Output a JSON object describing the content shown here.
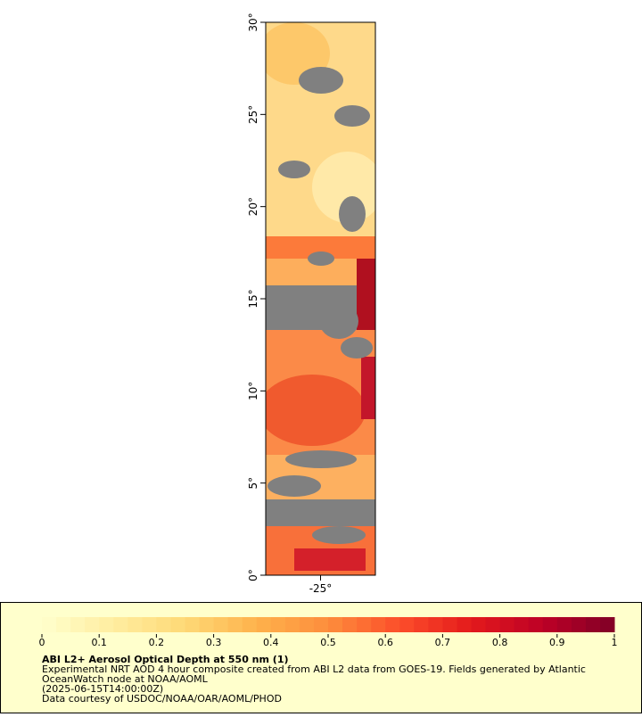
{
  "map": {
    "lat_range": [
      0,
      30
    ],
    "lat_ticks": [
      {
        "value": 0,
        "label": "0°"
      },
      {
        "value": 5,
        "label": "5°"
      },
      {
        "value": 10,
        "label": "10°"
      },
      {
        "value": 15,
        "label": "15°"
      },
      {
        "value": 20,
        "label": "20°"
      },
      {
        "value": 25,
        "label": "25°"
      },
      {
        "value": 30,
        "label": "30°"
      }
    ],
    "lon_range": [
      -28,
      -22
    ],
    "lon_ticks": [
      {
        "value": -25,
        "label": "-25°"
      }
    ]
  },
  "colorbar": {
    "range": [
      0,
      1
    ],
    "ticks": [
      0,
      0.1,
      0.2,
      0.3,
      0.4,
      0.5,
      0.6,
      0.7,
      0.8,
      0.9,
      1
    ],
    "colors": [
      "#ffffcc",
      "#ffeda0",
      "#fed976",
      "#feb24c",
      "#fd8d3c",
      "#fc4e2a",
      "#e31a1c",
      "#bd0026",
      "#800026"
    ]
  },
  "legend": {
    "title": "ABI L2+ Aerosol Optical Depth at 550 nm (1)",
    "lines": [
      "Experimental NRT AOD 4 hour composite created from ABI L2 data from GOES-19. Fields generated by Atlantic",
      "OceanWatch node at NOAA/AOML",
      "(2025-06-15T14:00:00Z)",
      "Data courtesy of USDOC/NOAA/OAR/AOML/PHOD"
    ]
  }
}
